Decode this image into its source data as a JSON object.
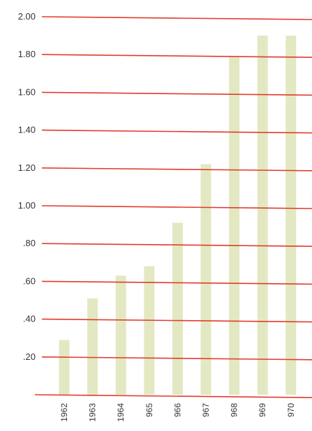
{
  "chart_data": {
    "type": "bar",
    "title": "",
    "xlabel": "",
    "ylabel": "",
    "categories": [
      "1962",
      "1963",
      "1964",
      "965",
      "966",
      "967",
      "968",
      "969",
      "970"
    ],
    "values": [
      0.29,
      0.51,
      0.63,
      0.68,
      0.91,
      1.22,
      1.79,
      1.9,
      1.9
    ],
    "ylim": [
      0,
      2.0
    ],
    "yticks": [
      {
        "value": 0.2,
        "label": ".20"
      },
      {
        "value": 0.4,
        "label": ".40"
      },
      {
        "value": 0.6,
        "label": ".60"
      },
      {
        "value": 0.8,
        "label": ".80"
      },
      {
        "value": 1.0,
        "label": "1.00"
      },
      {
        "value": 1.2,
        "label": "1.20"
      },
      {
        "value": 1.4,
        "label": "1.40"
      },
      {
        "value": 1.6,
        "label": "1.60"
      },
      {
        "value": 1.8,
        "label": "1.80"
      },
      {
        "value": 2.0,
        "label": "2.00"
      }
    ],
    "grid": true,
    "colors": {
      "bar": "#e3e8c2",
      "grid": "#e23a2e",
      "text": "#333333"
    }
  }
}
